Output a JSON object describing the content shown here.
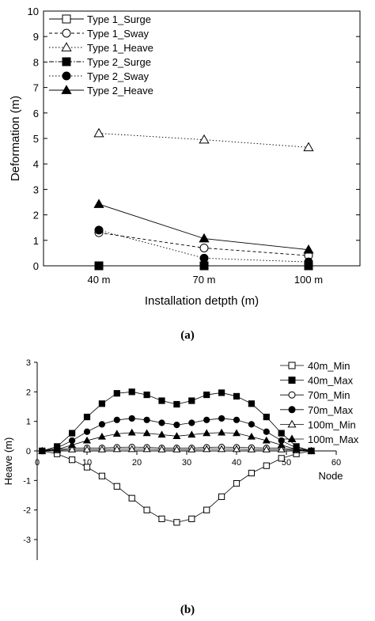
{
  "chart_data": [
    {
      "type": "line",
      "panel_label": "(a)",
      "xlabel": "Installation detpth (m)",
      "ylabel": "Deformation (m)",
      "categories": [
        "40 m",
        "70 m",
        "100 m"
      ],
      "ylim": [
        0,
        10
      ],
      "yticks": [
        0,
        1,
        2,
        3,
        4,
        5,
        6,
        7,
        8,
        9,
        10
      ],
      "legend_position": "top-left",
      "grid": false,
      "series": [
        {
          "name": "Type 1_Surge",
          "marker": "square-open",
          "line": "solid",
          "values": [
            0.0,
            0.0,
            0.0
          ]
        },
        {
          "name": "Type 1_Sway",
          "marker": "circle-open",
          "line": "dashed",
          "values": [
            1.3,
            0.7,
            0.4
          ]
        },
        {
          "name": "Type 1_Heave",
          "marker": "triangle-open",
          "line": "dotted",
          "values": [
            5.2,
            4.95,
            4.65
          ]
        },
        {
          "name": "Type 2_Surge",
          "marker": "square-filled",
          "line": "dashdot",
          "values": [
            0.0,
            0.0,
            0.0
          ]
        },
        {
          "name": "Type 2_Sway",
          "marker": "circle-filled",
          "line": "dotted",
          "values": [
            1.4,
            0.3,
            0.15
          ]
        },
        {
          "name": "Type 2_Heave",
          "marker": "triangle-filled",
          "line": "solid",
          "values": [
            2.42,
            1.07,
            0.63
          ]
        }
      ]
    },
    {
      "type": "line",
      "panel_label": "(b)",
      "xlabel": "Node",
      "ylabel": "Heave (m)",
      "xlim": [
        0,
        60
      ],
      "xticks": [
        0,
        10,
        20,
        30,
        40,
        50,
        60
      ],
      "ylim": [
        -3,
        3
      ],
      "yticks": [
        -3,
        -2,
        -1,
        0,
        1,
        2,
        3
      ],
      "legend_position": "top-right",
      "grid": false,
      "x": [
        1,
        4,
        7,
        10,
        13,
        16,
        19,
        22,
        25,
        28,
        31,
        34,
        37,
        40,
        43,
        46,
        49,
        52,
        55
      ],
      "series": [
        {
          "name": "40m_Min",
          "marker": "square-open",
          "values": [
            0,
            -0.1,
            -0.3,
            -0.55,
            -0.85,
            -1.2,
            -1.6,
            -2.0,
            -2.3,
            -2.42,
            -2.3,
            -2.0,
            -1.55,
            -1.1,
            -0.75,
            -0.5,
            -0.25,
            -0.1,
            0
          ]
        },
        {
          "name": "40m_Max",
          "marker": "square-filled",
          "values": [
            0,
            0.15,
            0.6,
            1.15,
            1.6,
            1.95,
            2.0,
            1.9,
            1.7,
            1.58,
            1.7,
            1.9,
            1.97,
            1.85,
            1.6,
            1.15,
            0.6,
            0.15,
            0
          ]
        },
        {
          "name": "70m_Min",
          "marker": "circle-open",
          "values": [
            0,
            0.05,
            0.1,
            0.1,
            0.1,
            0.12,
            0.13,
            0.12,
            0.1,
            0.1,
            0.1,
            0.12,
            0.13,
            0.12,
            0.11,
            0.1,
            0.1,
            0.05,
            0
          ]
        },
        {
          "name": "70m_Max",
          "marker": "circle-filled",
          "values": [
            0,
            0.1,
            0.35,
            0.65,
            0.9,
            1.05,
            1.1,
            1.05,
            0.95,
            0.88,
            0.95,
            1.05,
            1.1,
            1.05,
            0.9,
            0.65,
            0.35,
            0.1,
            0
          ]
        },
        {
          "name": "100m_Min",
          "marker": "triangle-open",
          "values": [
            0,
            0.02,
            0.05,
            0.05,
            0.05,
            0.06,
            0.06,
            0.06,
            0.05,
            0.05,
            0.05,
            0.06,
            0.06,
            0.06,
            0.05,
            0.05,
            0.05,
            0.02,
            0
          ]
        },
        {
          "name": "100m_Max",
          "marker": "triangle-filled",
          "values": [
            0,
            0.05,
            0.2,
            0.35,
            0.48,
            0.58,
            0.62,
            0.6,
            0.55,
            0.5,
            0.55,
            0.6,
            0.62,
            0.6,
            0.48,
            0.35,
            0.2,
            0.05,
            0
          ]
        }
      ]
    }
  ]
}
